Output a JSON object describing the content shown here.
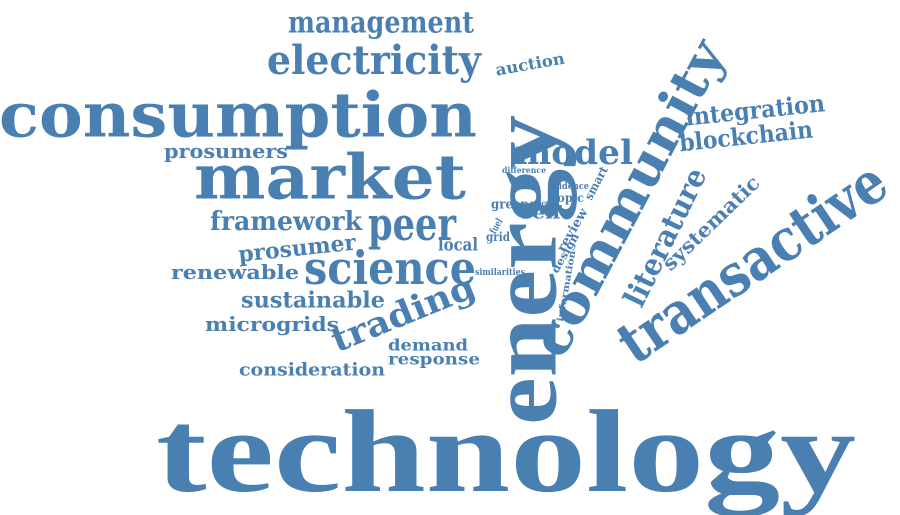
{
  "colors": {
    "word": "#4a7fb2",
    "background": "#ffffff"
  },
  "words": [
    {
      "key": "technology",
      "text": "technology"
    },
    {
      "key": "energy",
      "text": "energy"
    },
    {
      "key": "consumption",
      "text": "consumption"
    },
    {
      "key": "market",
      "text": "market"
    },
    {
      "key": "transactive",
      "text": "transactive"
    },
    {
      "key": "community",
      "text": "community"
    },
    {
      "key": "electricity",
      "text": "electricity"
    },
    {
      "key": "management",
      "text": "management"
    },
    {
      "key": "science",
      "text": "science"
    },
    {
      "key": "peer",
      "text": "peer"
    },
    {
      "key": "trading",
      "text": "trading"
    },
    {
      "key": "model",
      "text": "model"
    },
    {
      "key": "literature",
      "text": "literature"
    },
    {
      "key": "systematic",
      "text": "systematic"
    },
    {
      "key": "integration",
      "text": "integration"
    },
    {
      "key": "blockchain",
      "text": "blockchain"
    },
    {
      "key": "framework",
      "text": "framework"
    },
    {
      "key": "prosumers",
      "text": "prosumers"
    },
    {
      "key": "prosumer",
      "text": "prosumer"
    },
    {
      "key": "renewable",
      "text": "renewable"
    },
    {
      "key": "sustainable",
      "text": "sustainable"
    },
    {
      "key": "microgrids",
      "text": "microgrids"
    },
    {
      "key": "consideration",
      "text": "consideration"
    },
    {
      "key": "demand",
      "text": "demand"
    },
    {
      "key": "response",
      "text": "response"
    },
    {
      "key": "auction",
      "text": "auction"
    },
    {
      "key": "local",
      "text": "local"
    },
    {
      "key": "self",
      "text": "self"
    },
    {
      "key": "green",
      "text": "green"
    },
    {
      "key": "review",
      "text": "review"
    },
    {
      "key": "design",
      "text": "design"
    },
    {
      "key": "information",
      "text": "information"
    },
    {
      "key": "smart",
      "text": "smart"
    },
    {
      "key": "topic",
      "text": "topic"
    },
    {
      "key": "evidence",
      "text": "evidence"
    },
    {
      "key": "difference",
      "text": "difference"
    },
    {
      "key": "paper",
      "text": "paper"
    },
    {
      "key": "fuel",
      "text": "fuel"
    },
    {
      "key": "grid",
      "text": "grid"
    },
    {
      "key": "similarities",
      "text": "similarities"
    }
  ]
}
